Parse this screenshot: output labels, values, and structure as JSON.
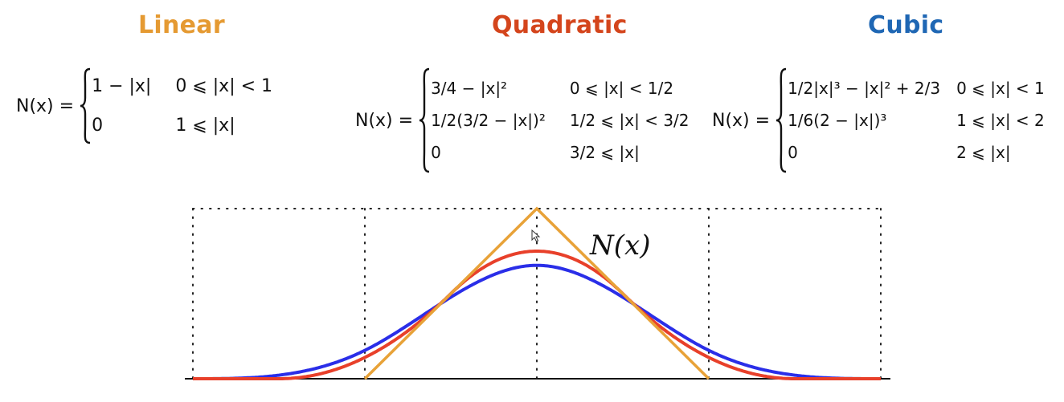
{
  "titles": {
    "linear": "Linear",
    "quadratic": "Quadratic",
    "cubic": "Cubic"
  },
  "colors": {
    "linear": "#e8a238",
    "quadratic": "#e8402a",
    "cubic": "#2a2ee8",
    "linear_title": "#e59a32",
    "quadratic_title": "#d4451c",
    "cubic_title": "#1f67b4"
  },
  "formulas": {
    "linear": {
      "lhs": "N(x) =",
      "rows": [
        {
          "expr": "1 − |x|",
          "cond": "0 ⩽ |x| < 1"
        },
        {
          "expr": "0",
          "cond": "1 ⩽ |x|"
        }
      ]
    },
    "quadratic": {
      "lhs": "N(x) =",
      "rows": [
        {
          "expr": "3/4 − |x|²",
          "cond": "0 ⩽ |x| < 1/2"
        },
        {
          "expr": "1/2(3/2 − |x|)²",
          "cond": "1/2 ⩽ |x| < 3/2"
        },
        {
          "expr": "0",
          "cond": "3/2 ⩽ |x|"
        }
      ]
    },
    "cubic": {
      "lhs": "N(x) =",
      "rows": [
        {
          "expr": "1/2|x|³ − |x|² + 2/3",
          "cond": "0 ⩽ |x| < 1"
        },
        {
          "expr": "1/6(2 − |x|)³",
          "cond": "1 ⩽ |x| < 2"
        },
        {
          "expr": "0",
          "cond": "2 ⩽ |x|"
        }
      ]
    }
  },
  "plot": {
    "curve_label": "N(x)",
    "x_range": [
      -2,
      2
    ],
    "gridlines_x": [
      -2,
      -1,
      0,
      1,
      2
    ],
    "curves": [
      "linear",
      "quadratic",
      "cubic"
    ]
  }
}
